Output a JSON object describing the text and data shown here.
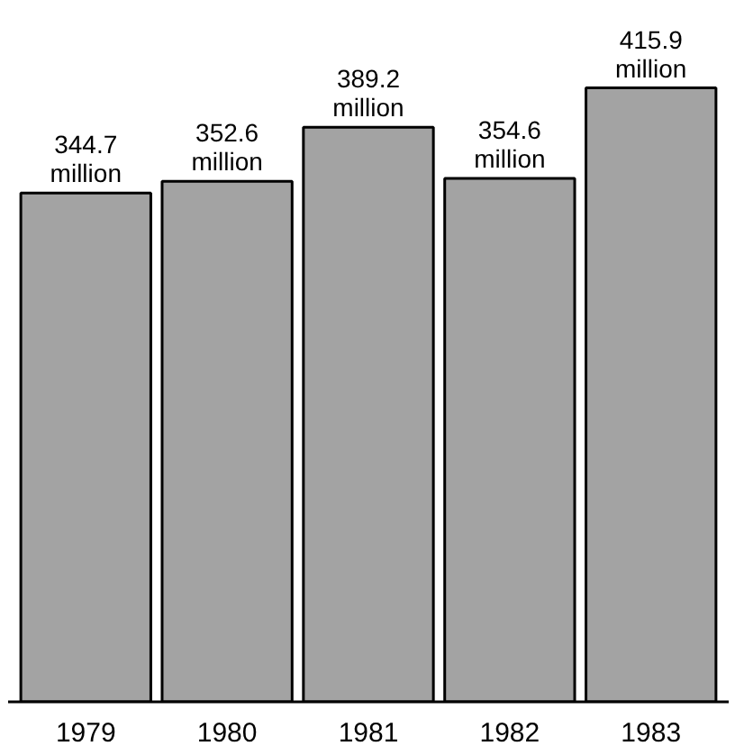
{
  "chart_data": {
    "type": "bar",
    "categories": [
      "1979",
      "1980",
      "1981",
      "1982",
      "1983"
    ],
    "values": [
      344.7,
      352.6,
      389.2,
      354.6,
      415.9
    ],
    "value_labels": [
      "344.7 million",
      "352.6 million",
      "389.2 million",
      "354.6 million",
      "415.9 million"
    ],
    "color": "#a3a3a3",
    "grid": false
  }
}
